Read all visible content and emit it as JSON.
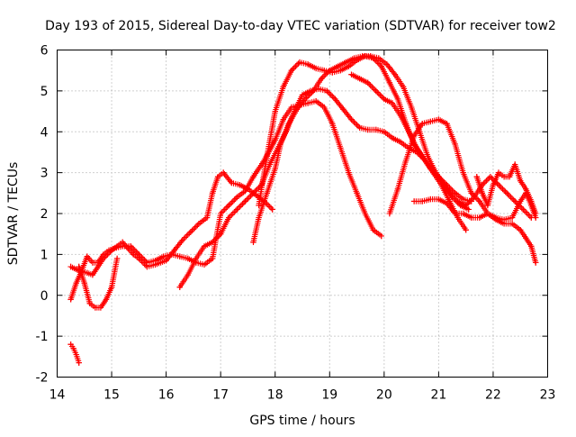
{
  "chart_data": {
    "type": "scatter",
    "title": "Day 193 of 2015, Sidereal Day-to-day VTEC variation (SDTVAR) for receiver tow2",
    "xlabel": "GPS time / hours",
    "ylabel": "SDTVAR / TECUs",
    "xlim": [
      14,
      23
    ],
    "ylim": [
      -2,
      6
    ],
    "xticks": [
      "14",
      "15",
      "16",
      "17",
      "18",
      "19",
      "20",
      "21",
      "22",
      "23"
    ],
    "yticks": [
      "-2",
      "-1",
      "0",
      "1",
      "2",
      "3",
      "4",
      "5",
      "6"
    ],
    "grid": true,
    "marker": "+",
    "color": "#ff0000",
    "series": [
      {
        "x": [
          14.25,
          14.3,
          14.35,
          14.4
        ],
        "y": [
          -1.2,
          -1.3,
          -1.45,
          -1.65
        ]
      },
      {
        "x": [
          14.25,
          14.4,
          14.55,
          14.65,
          14.75,
          14.85,
          15.0,
          15.1,
          15.2,
          15.3,
          15.4,
          15.5,
          15.65,
          15.8,
          16.0,
          16.15,
          16.3,
          16.45,
          16.6,
          16.75,
          16.85,
          16.95,
          17.05,
          17.2,
          17.35,
          17.5,
          17.65,
          17.8,
          17.95
        ],
        "y": [
          0.7,
          0.6,
          0.55,
          0.5,
          0.7,
          0.9,
          1.1,
          1.2,
          1.3,
          1.15,
          1.0,
          0.9,
          0.7,
          0.75,
          0.85,
          1.1,
          1.35,
          1.55,
          1.75,
          1.9,
          2.5,
          2.9,
          3.0,
          2.75,
          2.7,
          2.6,
          2.45,
          2.3,
          2.1
        ]
      },
      {
        "x": [
          14.25,
          14.35,
          14.45,
          14.55,
          14.65,
          14.75,
          14.85,
          14.95,
          15.05,
          15.2,
          15.35,
          15.5,
          15.65,
          15.8,
          15.95,
          16.1,
          16.25,
          16.4,
          16.55,
          16.7,
          16.85,
          17.0,
          17.15,
          17.3,
          17.45,
          17.6,
          17.8,
          18.0,
          18.15,
          18.3,
          18.45,
          18.6,
          18.75,
          18.9,
          19.05,
          19.2,
          19.35,
          19.5,
          19.65,
          19.8,
          19.95
        ],
        "y": [
          -0.1,
          0.3,
          0.6,
          0.95,
          0.8,
          0.8,
          1.0,
          1.1,
          1.15,
          1.2,
          1.2,
          1.0,
          0.8,
          0.85,
          0.95,
          1.0,
          0.95,
          0.9,
          0.8,
          0.75,
          0.9,
          2.0,
          2.2,
          2.4,
          2.55,
          2.9,
          3.3,
          3.8,
          4.3,
          4.6,
          4.65,
          4.7,
          4.75,
          4.6,
          4.2,
          3.6,
          3.0,
          2.5,
          2.0,
          1.6,
          1.45
        ]
      },
      {
        "x": [
          14.4,
          14.5,
          14.6,
          14.7,
          14.8,
          14.9,
          15.0,
          15.1
        ],
        "y": [
          0.7,
          0.3,
          -0.2,
          -0.3,
          -0.3,
          -0.1,
          0.2,
          0.9
        ]
      },
      {
        "x": [
          16.25,
          16.4,
          16.55,
          16.7,
          16.85,
          17.0,
          17.15,
          17.3,
          17.45,
          17.6,
          17.75,
          17.9,
          18.05,
          18.2,
          18.35,
          18.5,
          18.65,
          18.8,
          18.95,
          19.1,
          19.25,
          19.4,
          19.55,
          19.7,
          19.85,
          20.0,
          20.15,
          20.3,
          20.45,
          20.6,
          20.75,
          20.9,
          21.05,
          21.2,
          21.35,
          21.5
        ],
        "y": [
          0.2,
          0.5,
          0.9,
          1.2,
          1.3,
          1.5,
          1.9,
          2.1,
          2.3,
          2.5,
          2.7,
          3.2,
          3.6,
          4.0,
          4.5,
          4.9,
          5.0,
          5.05,
          5.0,
          4.8,
          4.55,
          4.3,
          4.1,
          4.05,
          4.05,
          4.0,
          3.85,
          3.75,
          3.6,
          3.5,
          3.3,
          3.0,
          2.7,
          2.3,
          1.9,
          1.6
        ]
      },
      {
        "x": [
          17.6,
          17.7,
          17.85,
          18.0,
          18.1,
          18.25,
          18.4,
          18.55,
          18.7,
          18.85,
          19.0,
          19.15,
          19.3,
          19.45,
          19.6,
          19.75,
          19.9,
          20.05,
          20.2,
          20.35,
          20.5,
          20.65,
          20.8,
          20.95,
          21.1,
          21.25,
          21.4,
          21.55
        ],
        "y": [
          1.3,
          1.9,
          2.5,
          3.1,
          3.7,
          4.2,
          4.55,
          4.8,
          5.0,
          5.3,
          5.5,
          5.6,
          5.7,
          5.8,
          5.85,
          5.85,
          5.8,
          5.65,
          5.4,
          5.1,
          4.6,
          4.0,
          3.4,
          3.0,
          2.7,
          2.4,
          2.2,
          2.1
        ]
      },
      {
        "x": [
          17.7,
          17.85,
          18.0,
          18.15,
          18.3,
          18.45,
          18.6,
          18.75,
          18.9,
          19.05,
          19.2,
          19.35,
          19.5,
          19.65,
          19.8,
          19.95,
          20.1,
          20.25,
          20.4,
          20.55,
          20.7,
          20.85,
          21.0,
          21.15,
          21.3,
          21.45,
          21.6
        ],
        "y": [
          2.2,
          3.4,
          4.5,
          5.1,
          5.5,
          5.7,
          5.65,
          5.55,
          5.5,
          5.45,
          5.5,
          5.6,
          5.75,
          5.85,
          5.8,
          5.6,
          5.2,
          4.8,
          4.2,
          3.7,
          3.4,
          3.1,
          2.9,
          2.7,
          2.5,
          2.35,
          2.3
        ]
      },
      {
        "x": [
          19.4,
          19.55,
          19.7,
          19.85,
          20.0,
          20.15,
          20.3,
          20.45,
          20.6,
          20.75,
          20.9,
          21.05,
          21.2,
          21.35,
          21.5,
          21.65,
          21.8,
          21.95,
          22.1,
          22.25,
          22.4,
          22.55,
          22.7
        ],
        "y": [
          5.4,
          5.3,
          5.2,
          5.0,
          4.8,
          4.7,
          4.4,
          4.0,
          3.6,
          3.3,
          3.0,
          2.8,
          2.5,
          2.3,
          2.2,
          2.4,
          2.7,
          2.9,
          2.7,
          2.5,
          2.3,
          2.1,
          1.9
        ]
      },
      {
        "x": [
          20.1,
          20.25,
          20.4,
          20.55,
          20.7,
          20.85,
          21.0,
          21.15,
          21.3,
          21.45,
          21.6,
          21.75,
          21.9,
          22.05,
          22.2,
          22.35,
          22.5,
          22.6,
          22.7,
          22.78
        ],
        "y": [
          2.0,
          2.6,
          3.3,
          3.9,
          4.2,
          4.25,
          4.3,
          4.2,
          3.7,
          3.0,
          2.5,
          2.3,
          2.0,
          1.9,
          1.85,
          1.9,
          2.3,
          2.5,
          2.2,
          1.9
        ]
      },
      {
        "x": [
          20.55,
          20.7,
          20.85,
          21.0,
          21.15,
          21.3,
          21.45,
          21.6,
          21.75,
          21.9,
          22.05,
          22.2,
          22.35,
          22.5,
          22.6,
          22.7,
          22.78
        ],
        "y": [
          2.3,
          2.3,
          2.35,
          2.35,
          2.25,
          2.0,
          2.0,
          1.9,
          1.9,
          2.0,
          1.85,
          1.75,
          1.75,
          1.6,
          1.4,
          1.2,
          0.8
        ]
      },
      {
        "x": [
          21.7,
          21.8,
          21.9,
          22.0,
          22.1,
          22.2,
          22.3,
          22.4,
          22.5,
          22.6,
          22.7,
          22.78
        ],
        "y": [
          2.9,
          2.5,
          2.2,
          2.7,
          3.0,
          2.9,
          2.9,
          3.2,
          2.8,
          2.6,
          2.3,
          2.0
        ]
      }
    ]
  }
}
